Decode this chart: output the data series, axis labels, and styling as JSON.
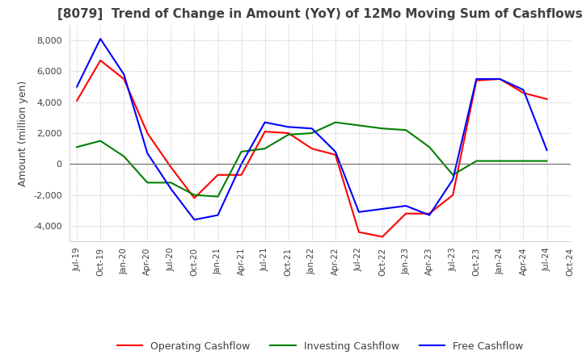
{
  "title": "[8079]  Trend of Change in Amount (YoY) of 12Mo Moving Sum of Cashflows",
  "ylabel": "Amount (million yen)",
  "ylim": [
    -5000,
    9000
  ],
  "yticks": [
    -4000,
    -2000,
    0,
    2000,
    4000,
    6000,
    8000
  ],
  "x_labels": [
    "Jul-19",
    "Oct-19",
    "Jan-20",
    "Apr-20",
    "Jul-20",
    "Oct-20",
    "Jan-21",
    "Apr-21",
    "Jul-21",
    "Oct-21",
    "Jan-22",
    "Apr-22",
    "Jul-22",
    "Oct-22",
    "Jan-23",
    "Apr-23",
    "Jul-23",
    "Oct-23",
    "Jan-24",
    "Apr-24",
    "Jul-24",
    "Oct-24"
  ],
  "operating": [
    4100,
    6700,
    5500,
    2000,
    -200,
    -2200,
    -700,
    -700,
    2100,
    2000,
    1000,
    600,
    -4400,
    -4700,
    -3200,
    -3200,
    -2000,
    5400,
    5500,
    4600,
    4200,
    null
  ],
  "investing": [
    1100,
    1500,
    500,
    -1200,
    -1200,
    -2000,
    -2100,
    800,
    1000,
    1900,
    2000,
    2700,
    2500,
    2300,
    2200,
    1100,
    -700,
    200,
    200,
    200,
    200,
    null
  ],
  "free": [
    5000,
    8100,
    5800,
    700,
    -1600,
    -3600,
    -3300,
    0,
    2700,
    2400,
    2300,
    800,
    -3100,
    -2900,
    -2700,
    -3300,
    -1000,
    5500,
    5500,
    4800,
    900,
    null
  ],
  "operating_color": "#ff0000",
  "investing_color": "#008000",
  "free_color": "#0000ff",
  "background_color": "#ffffff",
  "grid_color": "#b0b0b0",
  "title_color": "#404040",
  "title_fontsize": 11,
  "legend_labels": [
    "Operating Cashflow",
    "Investing Cashflow",
    "Free Cashflow"
  ]
}
